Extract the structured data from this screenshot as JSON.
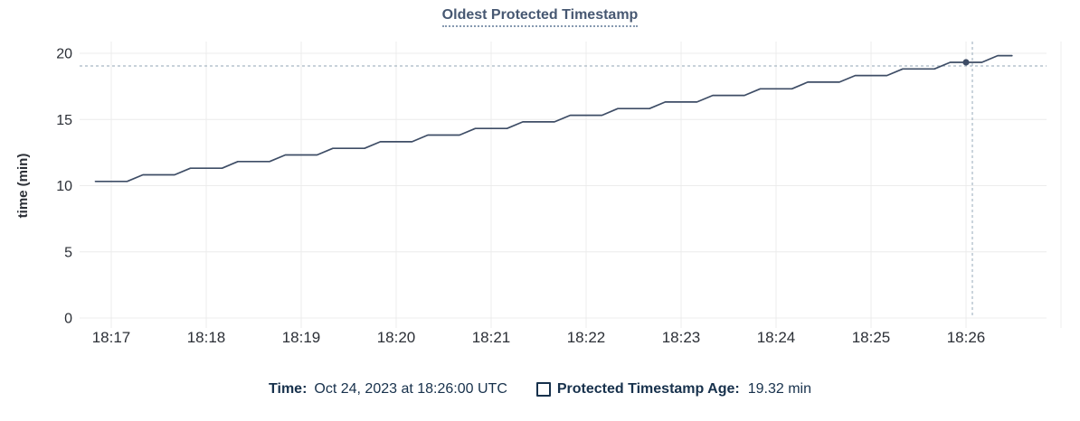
{
  "title": "Oldest Protected Timestamp",
  "chart_data": {
    "type": "line",
    "title": "Oldest Protected Timestamp",
    "xlabel": "",
    "ylabel": "time (min)",
    "ylim": [
      0,
      20
    ],
    "yticks": [
      0,
      5,
      10,
      15,
      20
    ],
    "xticks": [
      "18:17",
      "18:18",
      "18:19",
      "18:20",
      "18:21",
      "18:22",
      "18:23",
      "18:24",
      "18:25",
      "18:26"
    ],
    "grid": true,
    "legend_position": "bottom",
    "series": [
      {
        "name": "Protected Timestamp Age",
        "unit": "min",
        "points": [
          [
            "18:16:50",
            10.32
          ],
          [
            "18:17:10",
            10.32
          ],
          [
            "18:17:20",
            10.82
          ],
          [
            "18:17:40",
            10.82
          ],
          [
            "18:17:50",
            11.32
          ],
          [
            "18:18:10",
            11.32
          ],
          [
            "18:18:20",
            11.82
          ],
          [
            "18:18:40",
            11.82
          ],
          [
            "18:18:50",
            12.32
          ],
          [
            "18:19:10",
            12.32
          ],
          [
            "18:19:20",
            12.82
          ],
          [
            "18:19:40",
            12.82
          ],
          [
            "18:19:50",
            13.32
          ],
          [
            "18:20:10",
            13.32
          ],
          [
            "18:20:20",
            13.82
          ],
          [
            "18:20:40",
            13.82
          ],
          [
            "18:20:50",
            14.32
          ],
          [
            "18:21:10",
            14.32
          ],
          [
            "18:21:20",
            14.82
          ],
          [
            "18:21:40",
            14.82
          ],
          [
            "18:21:50",
            15.32
          ],
          [
            "18:22:10",
            15.32
          ],
          [
            "18:22:20",
            15.82
          ],
          [
            "18:22:40",
            15.82
          ],
          [
            "18:22:50",
            16.32
          ],
          [
            "18:23:10",
            16.32
          ],
          [
            "18:23:20",
            16.82
          ],
          [
            "18:23:40",
            16.82
          ],
          [
            "18:23:50",
            17.32
          ],
          [
            "18:24:10",
            17.32
          ],
          [
            "18:24:20",
            17.82
          ],
          [
            "18:24:40",
            17.82
          ],
          [
            "18:24:50",
            18.32
          ],
          [
            "18:25:10",
            18.32
          ],
          [
            "18:25:20",
            18.82
          ],
          [
            "18:25:40",
            18.82
          ],
          [
            "18:25:50",
            19.32
          ],
          [
            "18:26:10",
            19.32
          ],
          [
            "18:26:20",
            19.82
          ],
          [
            "18:26:29",
            19.82
          ]
        ]
      }
    ],
    "hover": {
      "time": "18:26:00",
      "value": 19.32,
      "time_label": "Oct 24, 2023 at 18:26:00 UTC",
      "value_label": "19.32 min"
    }
  },
  "legend": {
    "time_label": "Time:",
    "time_value": "Oct 24, 2023 at 18:26:00 UTC",
    "series_label": "Protected Timestamp Age:",
    "series_value": "19.32 min"
  },
  "icons": {
    "legend_checkbox": "empty-square"
  },
  "colors": {
    "line": "#3e4d66",
    "grid": "#ececec",
    "crosshair": "#a8b8c4",
    "title_text": "#475872",
    "legend_text": "#17314c",
    "axis_text": "#2b2f36"
  }
}
